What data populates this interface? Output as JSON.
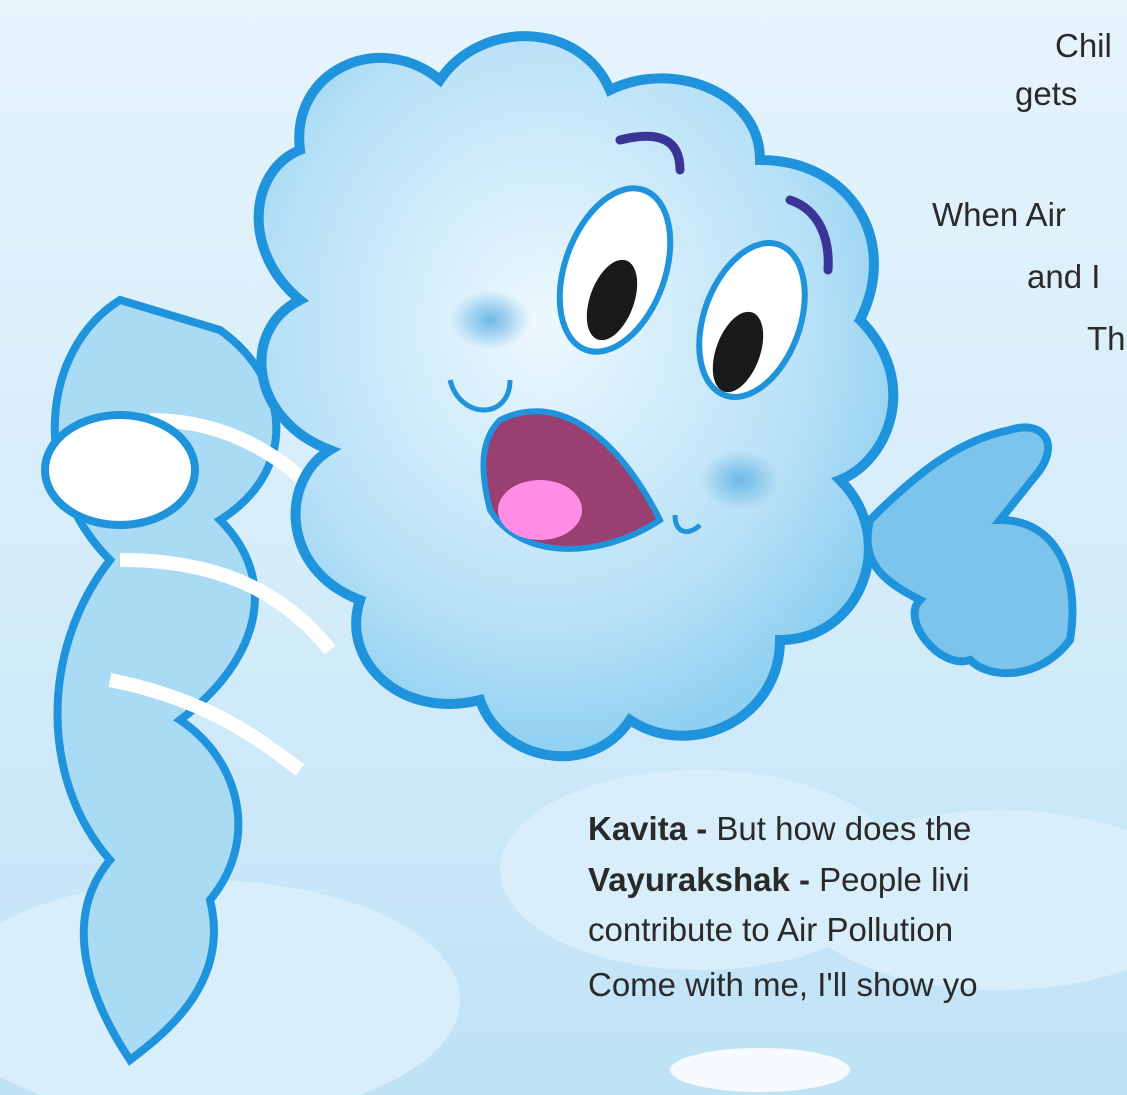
{
  "intro_lines": [
    "Chil",
    "gets",
    "When Air",
    "and I",
    "Th"
  ],
  "dialogue": [
    {
      "speaker": "Kavita -",
      "text": "But how does the"
    },
    {
      "speaker": "Vayurakshak -",
      "text": "People livi"
    },
    {
      "text": "contribute to Air Pollution"
    },
    {
      "text": "Come with me, I'll show yo"
    }
  ]
}
